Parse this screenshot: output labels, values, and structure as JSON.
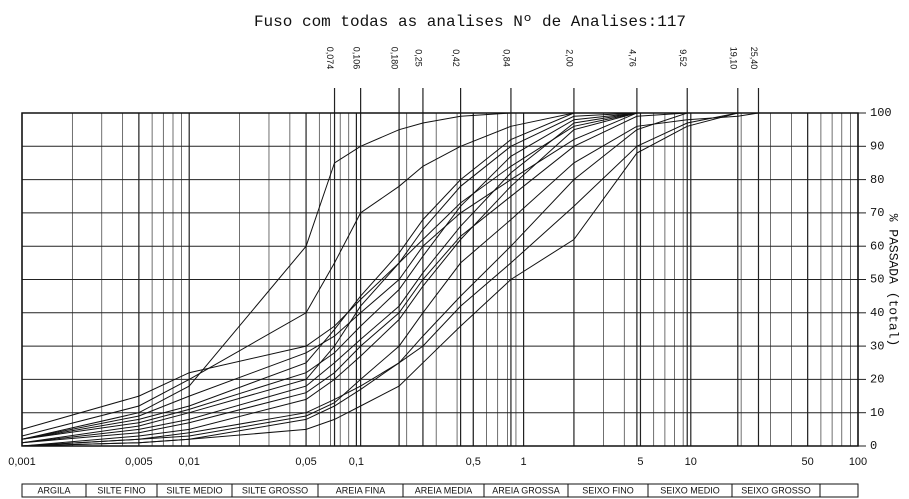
{
  "chart_data": {
    "type": "line",
    "title": "Fuso com todas as analises  Nº de Analises:117",
    "y_label": "% PASSADA (total)",
    "log_x": true,
    "grid": true,
    "color": "#111111",
    "xlim": [
      0.001,
      100
    ],
    "xticks": [
      {
        "value": 0.001,
        "label": "0,001"
      },
      {
        "value": 0.005,
        "label": "0,005"
      },
      {
        "value": 0.01,
        "label": "0,01"
      },
      {
        "value": 0.05,
        "label": "0,05"
      },
      {
        "value": 0.1,
        "label": "0,1"
      },
      {
        "value": 0.5,
        "label": "0,5"
      },
      1,
      5,
      10,
      50,
      100
    ],
    "ylim": [
      0,
      100
    ],
    "yticks": [
      0,
      10,
      20,
      30,
      40,
      50,
      60,
      70,
      80,
      90,
      100
    ],
    "sieve_ticks": [
      {
        "value": 0.074,
        "label": "0,074"
      },
      {
        "value": 0.106,
        "label": "0,106"
      },
      {
        "value": 0.18,
        "label": "0,180"
      },
      {
        "value": 0.25,
        "label": "0,25"
      },
      {
        "value": 0.42,
        "label": "0,42"
      },
      {
        "value": 0.84,
        "label": "0,84"
      },
      {
        "value": 2.0,
        "label": "2,00"
      },
      {
        "value": 4.76,
        "label": "4,76"
      },
      {
        "value": 9.52,
        "label": "9,52"
      },
      {
        "value": 19.1,
        "label": "19,10"
      },
      {
        "value": 25.4,
        "label": "25,40"
      }
    ],
    "classes": [
      "ARGILA",
      "SILTE FINO",
      "SILTE MEDIO",
      "SILTE GROSSO",
      "AREIA FINA",
      "AREIA MEDIA",
      "AREIA GROSSA",
      "SEIXO FINO",
      "SEIXO MEDIO",
      "SEIXO GROSSO"
    ],
    "x": [
      0.001,
      0.005,
      0.01,
      0.05,
      0.074,
      0.106,
      0.18,
      0.25,
      0.42,
      0.84,
      2.0,
      4.76,
      9.52,
      19.1,
      25.4
    ],
    "series": [
      {
        "values": [
          2,
          10,
          18,
          60,
          85,
          90,
          95,
          97,
          99,
          100,
          100,
          100,
          100,
          100,
          100
        ]
      },
      {
        "values": [
          1,
          6,
          10,
          20,
          30,
          42,
          55,
          65,
          78,
          90,
          99,
          100,
          100,
          100,
          100
        ]
      },
      {
        "values": [
          0,
          3,
          5,
          14,
          20,
          27,
          38,
          48,
          62,
          78,
          95,
          100,
          100,
          100,
          100
        ]
      },
      {
        "values": [
          2,
          8,
          12,
          25,
          35,
          45,
          58,
          68,
          80,
          92,
          100,
          100,
          100,
          100,
          100
        ]
      },
      {
        "values": [
          0,
          2,
          4,
          10,
          14,
          18,
          25,
          33,
          45,
          60,
          80,
          95,
          100,
          100,
          100
        ]
      },
      {
        "values": [
          1,
          5,
          8,
          18,
          25,
          32,
          42,
          52,
          66,
          82,
          97,
          100,
          100,
          100,
          100
        ]
      },
      {
        "values": [
          3,
          12,
          20,
          40,
          55,
          70,
          78,
          84,
          90,
          96,
          100,
          100,
          100,
          100,
          100
        ]
      },
      {
        "values": [
          0,
          1,
          2,
          8,
          12,
          17,
          25,
          30,
          42,
          55,
          72,
          90,
          97,
          100,
          100
        ]
      },
      {
        "values": [
          2,
          7,
          11,
          22,
          28,
          36,
          47,
          57,
          72,
          87,
          98,
          100,
          100,
          100,
          100
        ]
      },
      {
        "values": [
          1,
          4,
          7,
          16,
          22,
          30,
          40,
          50,
          63,
          75,
          90,
          99,
          100,
          100,
          100
        ]
      },
      {
        "values": [
          5,
          15,
          22,
          30,
          36,
          44,
          55,
          62,
          73,
          84,
          96,
          100,
          100,
          100,
          100
        ]
      },
      {
        "values": [
          0,
          2,
          3,
          9,
          13,
          20,
          30,
          40,
          55,
          68,
          85,
          96,
          98,
          99,
          100
        ]
      },
      {
        "values": [
          2,
          9,
          15,
          28,
          33,
          40,
          50,
          60,
          70,
          80,
          92,
          100,
          100,
          100,
          100
        ]
      },
      {
        "values": [
          0,
          1,
          2,
          5,
          8,
          12,
          18,
          25,
          36,
          50,
          62,
          88,
          96,
          100,
          100
        ]
      }
    ]
  }
}
